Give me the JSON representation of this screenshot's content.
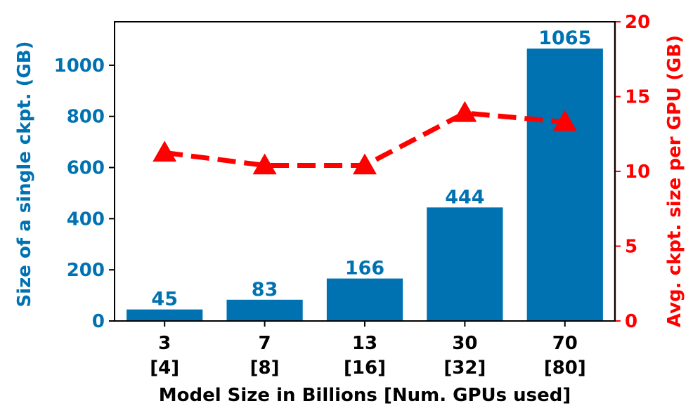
{
  "chart_data": {
    "type": "bar",
    "categories": [
      "3",
      "7",
      "13",
      "30",
      "70"
    ],
    "category_sublabels": [
      "[4]",
      "[8]",
      "[16]",
      "[32]",
      "[80]"
    ],
    "series": [
      {
        "name": "Size of a single ckpt. (GB)",
        "type": "bar",
        "axis": "left",
        "values": [
          45,
          83,
          166,
          444,
          1065
        ],
        "labels": [
          "45",
          "83",
          "166",
          "444",
          "1065"
        ]
      },
      {
        "name": "Avg. ckpt. size per GPU (GB)",
        "type": "line",
        "axis": "right",
        "marker": "triangle",
        "linestyle": "dashed",
        "values": [
          11.25,
          10.4,
          10.4,
          13.9,
          13.3
        ]
      }
    ],
    "xlabel": "Model Size in Billions [Num. GPUs used]",
    "ylabel": "Size of a single ckpt. (GB)",
    "y2label": "Avg. ckpt. size per GPU (GB)",
    "ylim": [
      0,
      1170
    ],
    "y2lim": [
      0,
      20
    ],
    "yticks": [
      "0",
      "200",
      "400",
      "600",
      "800",
      "1000"
    ],
    "y2ticks": [
      "0",
      "5",
      "10",
      "15",
      "20"
    ],
    "colors": {
      "bars": "#0072b2",
      "left_axis": "#0072b2",
      "line": "#ff0000",
      "right_axis": "#ff0000",
      "frame": "#000000"
    }
  }
}
